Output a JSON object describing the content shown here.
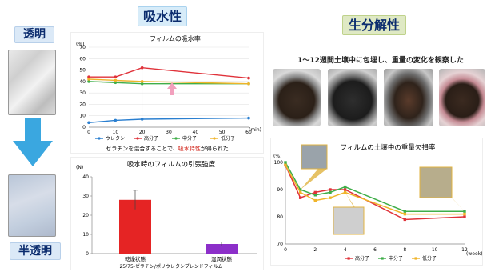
{
  "left": {
    "top_label": "透明",
    "bottom_label": "半透明"
  },
  "sections": {
    "absorption_title": "吸水性",
    "biodeg_title": "生分解性"
  },
  "photos_caption": "1～12週間土壌中に包埋し、重量の変化を観察した",
  "colors": {
    "urethane": "#2a7fd0",
    "high": "#e0323a",
    "mid": "#3fae49",
    "low": "#f0b429",
    "arrow_pink": "#f2a0bd",
    "red_text": "#d2281e",
    "bar_dry": "#e52424",
    "bar_wet": "#8c2fc9",
    "left_arrow": "#3aa7e0"
  },
  "chart_data": [
    {
      "type": "line",
      "title": "フィルムの吸水率",
      "ylabel": "(%)",
      "xlabel": "(min)",
      "ylim": [
        0,
        70
      ],
      "yticks": [
        0,
        10,
        20,
        30,
        40,
        50,
        60,
        70
      ],
      "xlim": [
        0,
        60
      ],
      "xticks": [
        0,
        10,
        20,
        30,
        40,
        50,
        60
      ],
      "series": [
        {
          "name": "ウレタン",
          "color_key": "urethane",
          "x": [
            0,
            10,
            20,
            60
          ],
          "y": [
            4,
            6,
            7,
            8
          ]
        },
        {
          "name": "高分子",
          "color_key": "high",
          "x": [
            0,
            10,
            20,
            60
          ],
          "y": [
            44,
            44,
            52,
            43
          ]
        },
        {
          "name": "中分子",
          "color_key": "mid",
          "x": [
            0,
            10,
            20,
            60
          ],
          "y": [
            40,
            39,
            38,
            38
          ]
        },
        {
          "name": "低分子",
          "color_key": "low",
          "x": [
            0,
            10,
            20,
            60
          ],
          "y": [
            42,
            41,
            40,
            38
          ]
        }
      ],
      "note_before": "ゼラチンを混合することで、",
      "note_highlight": "吸水特性",
      "note_after": "が得られた",
      "legend_placement": "bottom"
    },
    {
      "type": "bar",
      "title": "吸水時のフィルムの引張強度",
      "ylabel": "(N)",
      "ylim": [
        0,
        40
      ],
      "yticks": [
        0,
        10,
        20,
        30,
        40
      ],
      "categories": [
        "乾燥状態",
        "湿潤状態"
      ],
      "values": [
        28,
        5
      ],
      "errors": [
        5,
        1
      ],
      "xlabel": "25/75-ゼラチン/ポリウレタンブレンドフィルム"
    },
    {
      "type": "line",
      "title": "フィルムの土壌中の重量欠損率",
      "ylabel": "(%)",
      "xlabel": "(week)",
      "ylim": [
        70,
        100
      ],
      "yticks": [
        70,
        80,
        90,
        100
      ],
      "xlim": [
        0,
        12
      ],
      "xticks": [
        0,
        2,
        4,
        6,
        8,
        10,
        12
      ],
      "series": [
        {
          "name": "高分子",
          "color_key": "high",
          "x": [
            0,
            1,
            2,
            3,
            4,
            8,
            12
          ],
          "y": [
            99,
            87,
            89,
            90,
            90,
            79,
            80
          ]
        },
        {
          "name": "中分子",
          "color_key": "mid",
          "x": [
            0,
            1,
            2,
            3,
            4,
            8,
            12
          ],
          "y": [
            100,
            90,
            88,
            89,
            91,
            82,
            82
          ]
        },
        {
          "name": "低分子",
          "color_key": "low",
          "x": [
            0,
            1,
            2,
            3,
            4,
            8,
            12
          ],
          "y": [
            99,
            89,
            86,
            87,
            89,
            81,
            81
          ]
        }
      ],
      "legend_placement": "bottom"
    }
  ]
}
